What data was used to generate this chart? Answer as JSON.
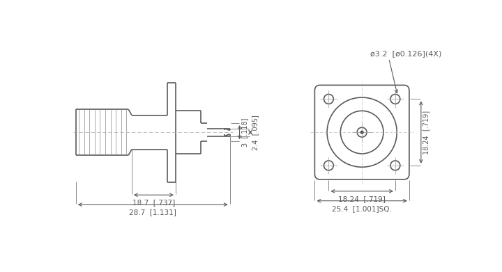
{
  "bg_color": "#ffffff",
  "line_color": "#5a5a5a",
  "lw": 1.2,
  "thin_lw": 0.7,
  "annotations": {
    "hole_label": "ø3.2  [ø0.126](4X)",
    "dim1_label": "18.7  [.737]",
    "dim2_label": "28.7  [1.131]",
    "dim3_label": "18.24  [.719]",
    "dim4_label": "25.4  [1.001]SQ.",
    "dim5_label": "18.24  [.719]",
    "depth1_label": "3  [.118]",
    "depth2_label": "2.4  [.095]"
  }
}
